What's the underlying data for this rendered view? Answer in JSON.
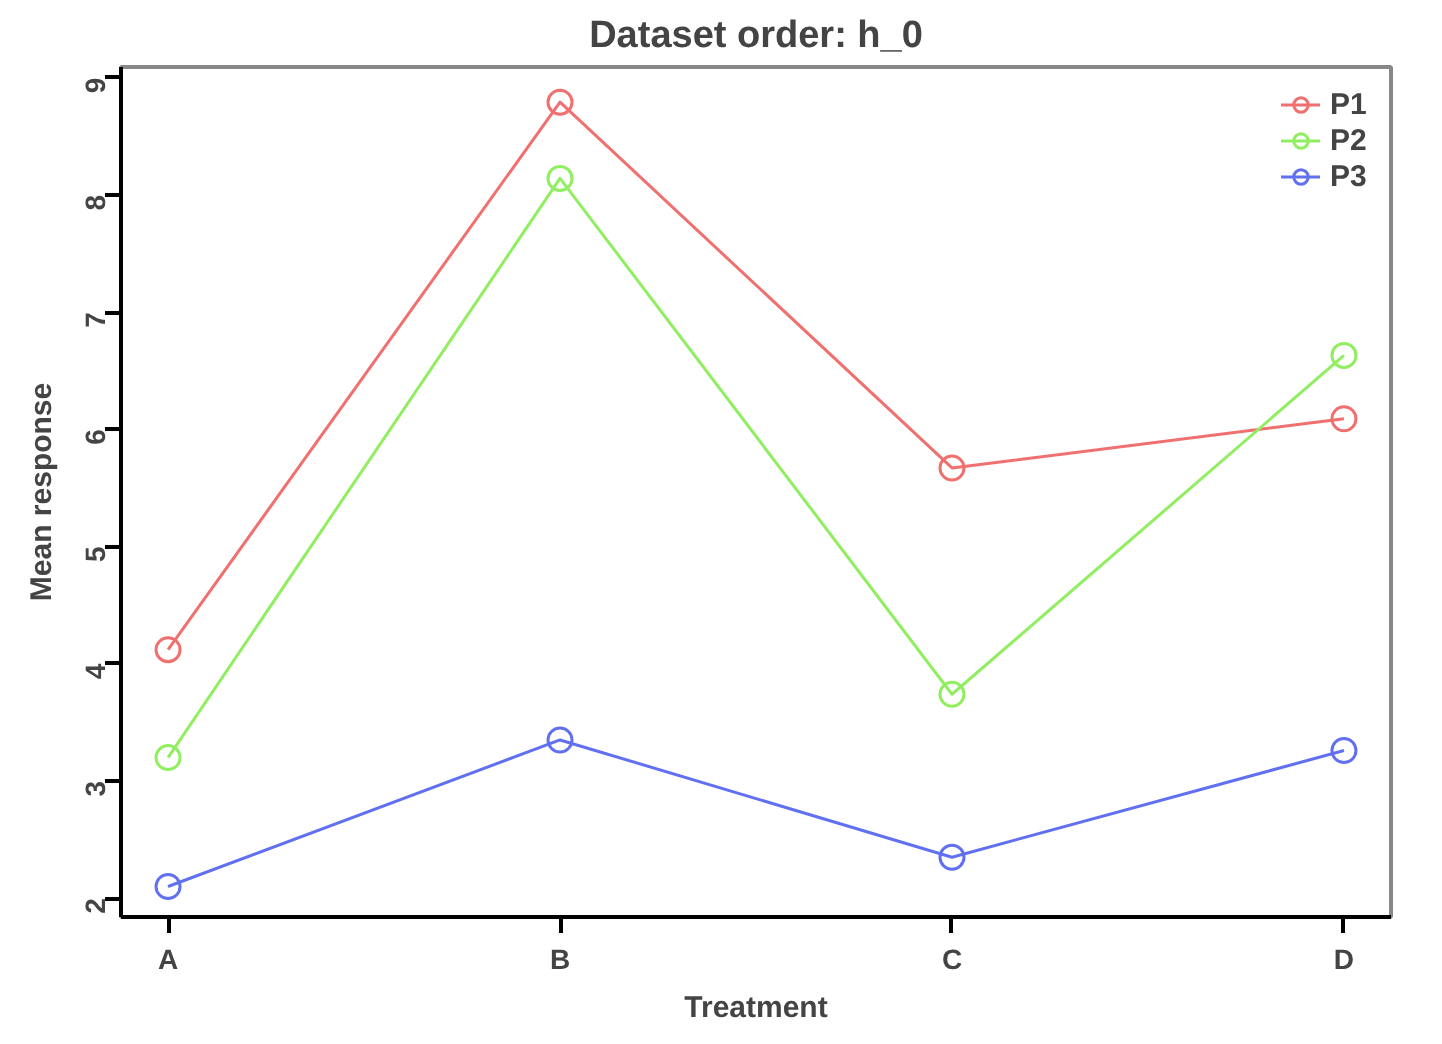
{
  "chart_data": {
    "type": "line",
    "title": "Dataset order: h_0",
    "xlabel": "Treatment",
    "ylabel": "Mean response",
    "categories": [
      "A",
      "B",
      "C",
      "D"
    ],
    "series": [
      {
        "name": "P1",
        "color": "#f07070",
        "values": [
          4.12,
          8.79,
          5.67,
          6.09
        ]
      },
      {
        "name": "P2",
        "color": "#90ee60",
        "values": [
          3.2,
          8.14,
          3.74,
          6.63
        ]
      },
      {
        "name": "P3",
        "color": "#6070f0",
        "values": [
          2.1,
          3.35,
          2.35,
          3.26
        ]
      }
    ],
    "ylim": [
      1.84,
      9.09
    ],
    "yticks": [
      2,
      3,
      4,
      5,
      6,
      7,
      8,
      9
    ],
    "grid": false,
    "legend": "top right",
    "marker": "circle",
    "line_style": "solid"
  }
}
